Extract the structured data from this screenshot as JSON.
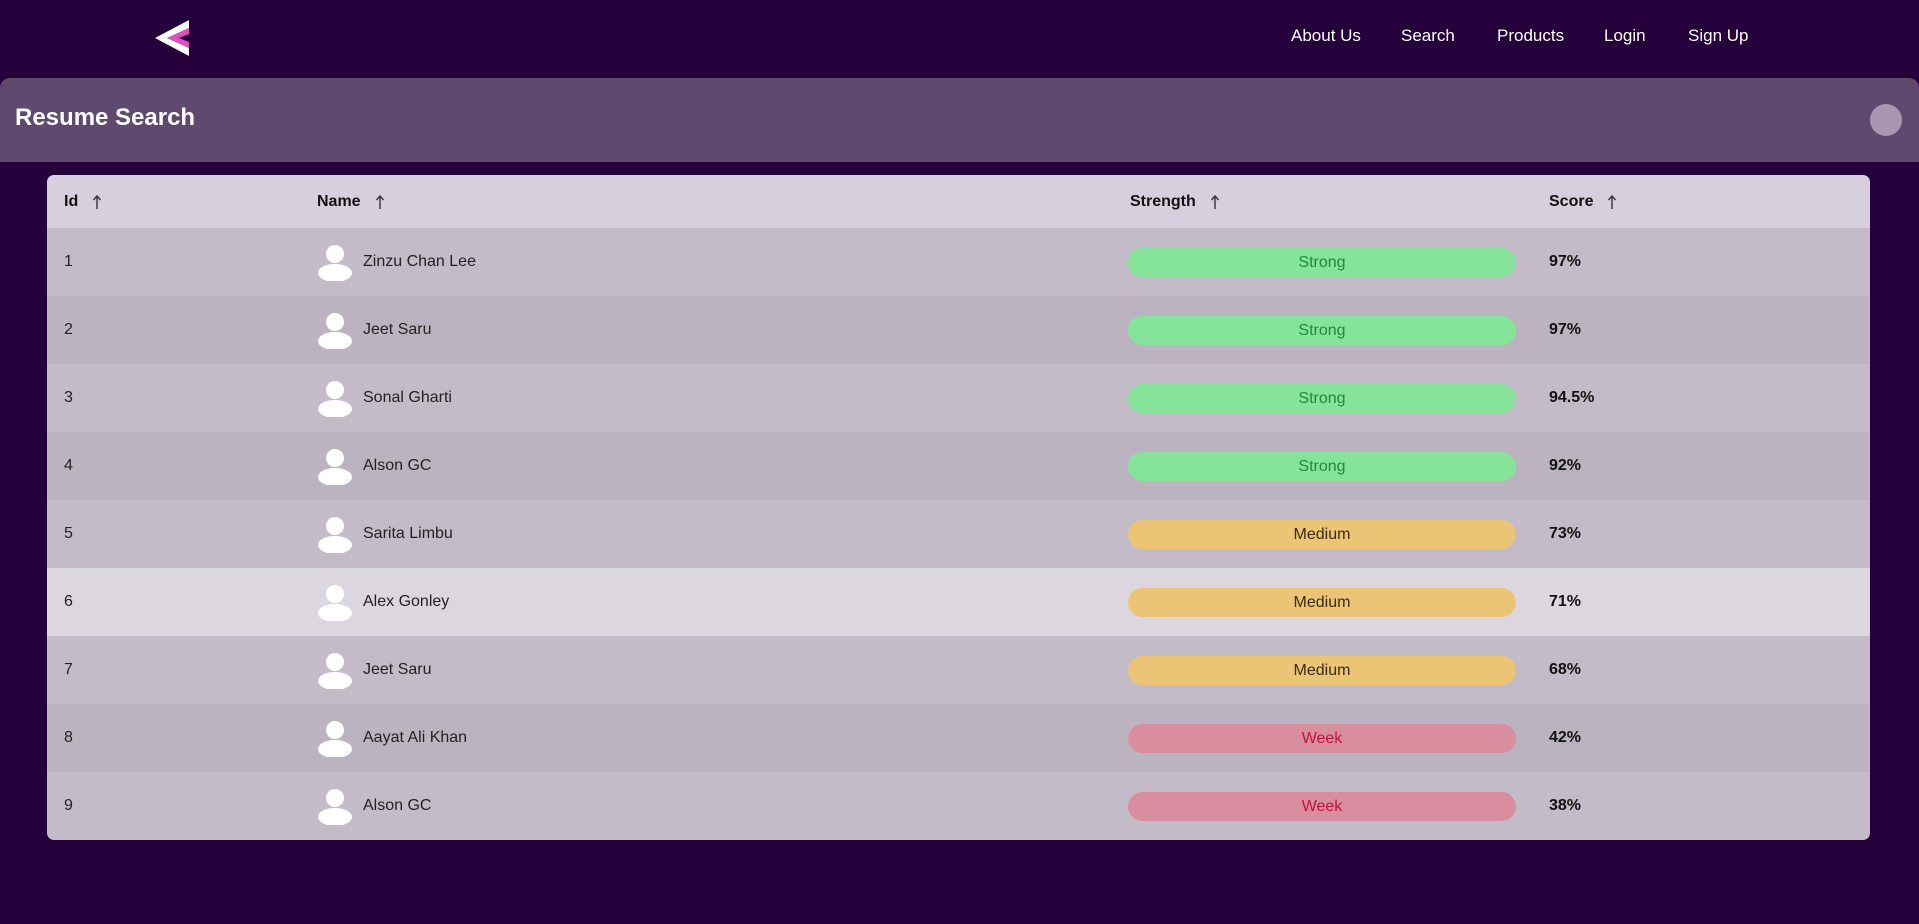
{
  "nav": {
    "links": [
      "About Us",
      "Search",
      "Products",
      "Login",
      "Sign Up"
    ]
  },
  "header": {
    "title": "Resume Search"
  },
  "table": {
    "columns": [
      "Id",
      "Name",
      "Strength",
      "Score"
    ],
    "rows": [
      [
        "1",
        "Zinzu Chan Lee",
        "Strong",
        "97%"
      ],
      [
        "2",
        "Jeet Saru",
        "Strong",
        "97%"
      ],
      [
        "3",
        "Sonal Gharti",
        "Strong",
        "94.5%"
      ],
      [
        "4",
        "Alson GC",
        "Strong",
        "92%"
      ],
      [
        "5",
        "Sarita Limbu",
        "Medium",
        "73%"
      ],
      [
        "6",
        "Alex Gonley",
        "Medium",
        "71%"
      ],
      [
        "7",
        "Jeet Saru",
        "Medium",
        "68%"
      ],
      [
        "8",
        "Aayat Ali Khan",
        "Week",
        "42%"
      ],
      [
        "9",
        "Alson GC",
        "Week",
        "38%"
      ]
    ]
  }
}
